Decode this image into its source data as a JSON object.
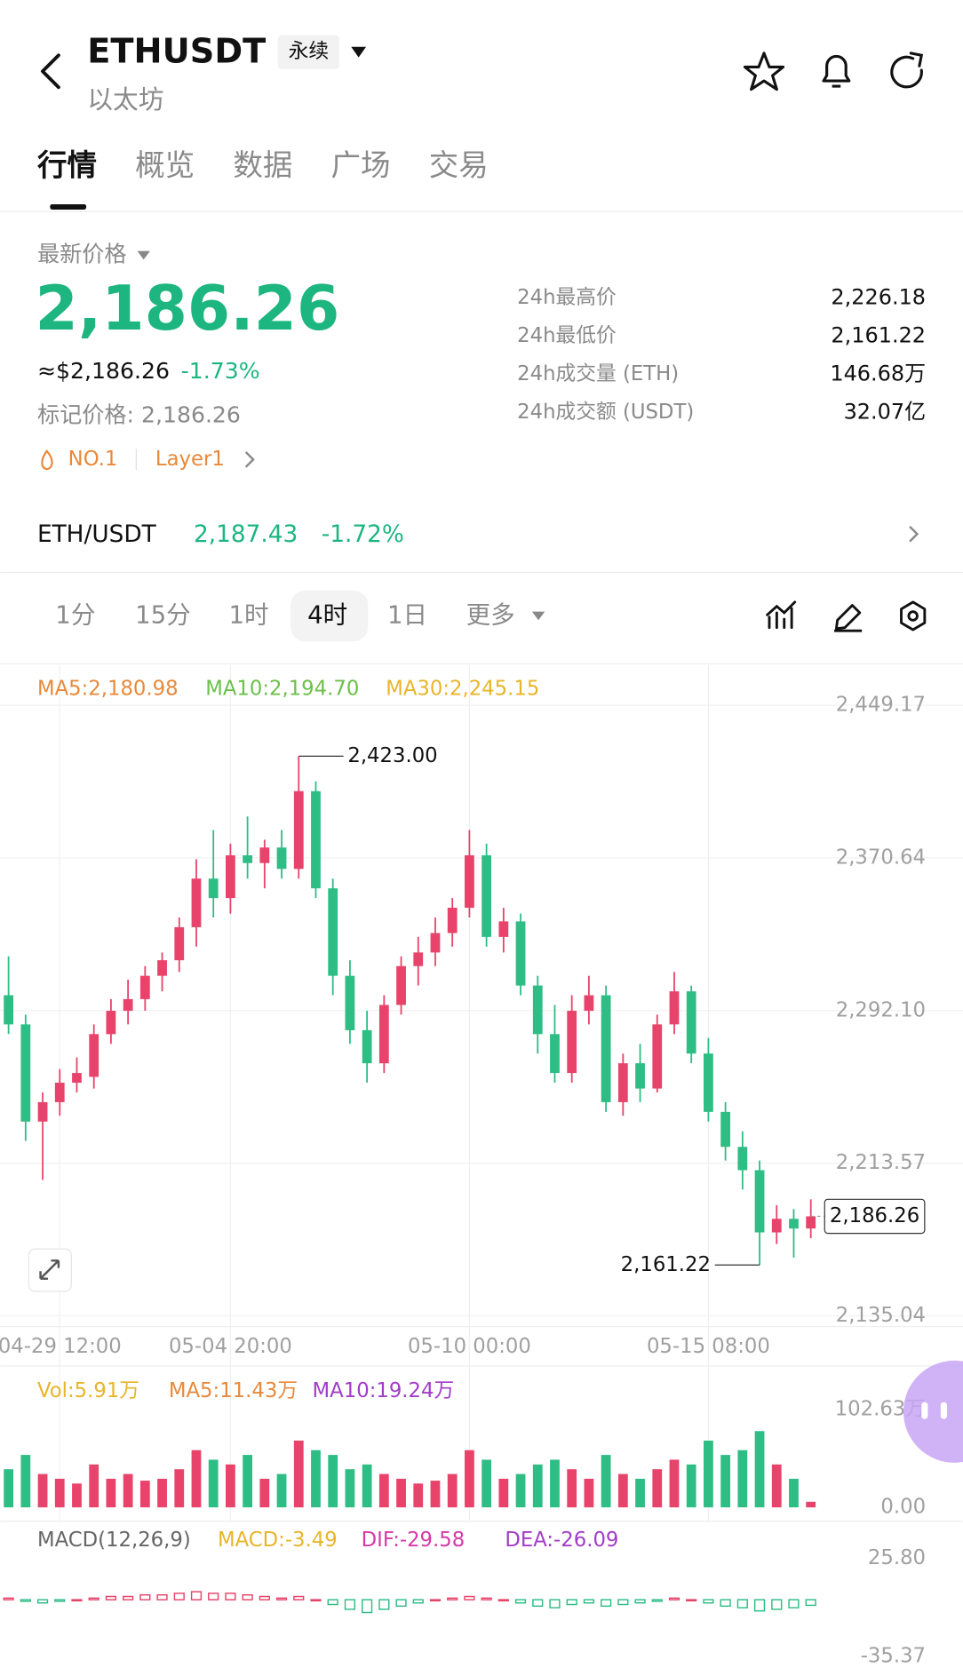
{
  "header": {
    "symbol": "ETHUSDT",
    "tag": "永续",
    "name": "以太坊"
  },
  "tabs": [
    "行情",
    "概览",
    "数据",
    "广场",
    "交易"
  ],
  "price": {
    "label": "最新价格",
    "last": "2,186.26",
    "usd": "≈$2,186.26",
    "change": "-1.73%",
    "mark": "标记价格: 2,186.26",
    "tags": [
      "NO.1",
      "Layer1"
    ]
  },
  "stats": [
    [
      "24h最高价",
      "2,226.18"
    ],
    [
      "24h最低价",
      "2,161.22"
    ],
    [
      "24h成交量 (ETH)",
      "146.68万"
    ],
    [
      "24h成交额 (USDT)",
      "32.07亿"
    ]
  ],
  "spot": {
    "pair": "ETH/USDT",
    "price": "2,187.43",
    "change": "-1.72%"
  },
  "intervals": [
    "1分",
    "15分",
    "1时",
    "4时",
    "1日",
    "更多"
  ],
  "chart_data": [
    {
      "type": "candlestick",
      "legend": [
        "MA5:2,180.98",
        "MA10:2,194.70",
        "MA30:2,245.15"
      ],
      "legend_colors": [
        "#e8893a",
        "#6cc04a",
        "#e8b52a"
      ],
      "up_color": "#e8436a",
      "down_color": "#2ebd85",
      "open": [
        2300,
        2285,
        2235,
        2245,
        2255,
        2258,
        2280,
        2292,
        2298,
        2310,
        2318,
        2335,
        2360,
        2350,
        2372,
        2368,
        2376,
        2365,
        2405,
        2355,
        2310,
        2282,
        2265,
        2295,
        2315,
        2322,
        2332,
        2345,
        2372,
        2330,
        2338,
        2305,
        2280,
        2260,
        2292,
        2300,
        2245,
        2265,
        2252,
        2285,
        2302,
        2270,
        2240,
        2222,
        2210,
        2178,
        2185,
        2180
      ],
      "high": [
        2320,
        2290,
        2250,
        2262,
        2268,
        2285,
        2298,
        2308,
        2315,
        2322,
        2340,
        2370,
        2385,
        2378,
        2392,
        2380,
        2385,
        2423,
        2410,
        2360,
        2318,
        2292,
        2300,
        2320,
        2330,
        2340,
        2350,
        2385,
        2378,
        2345,
        2342,
        2310,
        2295,
        2300,
        2310,
        2305,
        2270,
        2275,
        2290,
        2312,
        2305,
        2278,
        2245,
        2230,
        2215,
        2192,
        2190,
        2195
      ],
      "low": [
        2280,
        2225,
        2205,
        2238,
        2250,
        2252,
        2275,
        2285,
        2292,
        2302,
        2312,
        2325,
        2340,
        2342,
        2360,
        2355,
        2360,
        2360,
        2350,
        2300,
        2275,
        2255,
        2260,
        2290,
        2305,
        2315,
        2325,
        2340,
        2325,
        2322,
        2300,
        2270,
        2255,
        2255,
        2285,
        2240,
        2238,
        2245,
        2250,
        2280,
        2265,
        2235,
        2215,
        2200,
        2161.22,
        2172,
        2165,
        2175
      ],
      "close": [
        2285,
        2235,
        2245,
        2255,
        2260,
        2280,
        2292,
        2298,
        2310,
        2318,
        2335,
        2360,
        2350,
        2372,
        2368,
        2376,
        2365,
        2405,
        2355,
        2310,
        2282,
        2265,
        2295,
        2315,
        2322,
        2332,
        2345,
        2372,
        2330,
        2338,
        2305,
        2280,
        2260,
        2292,
        2300,
        2245,
        2265,
        2252,
        2285,
        2302,
        2270,
        2240,
        2222,
        2210,
        2178,
        2185,
        2180,
        2186.26
      ],
      "ylim": [
        2135.04,
        2449.17
      ],
      "yticks": [
        {
          "value": 2449.17,
          "label": "2,449.17"
        },
        {
          "value": 2370.64,
          "label": "2,370.64"
        },
        {
          "value": 2292.1,
          "label": "2,292.10"
        },
        {
          "value": 2213.57,
          "label": "2,213.57"
        },
        {
          "value": 2135.04,
          "label": "2,135.04"
        }
      ],
      "xticks": [
        {
          "value": 3,
          "label": "04-29 12:00"
        },
        {
          "value": 13,
          "label": "05-04 20:00"
        },
        {
          "value": 27,
          "label": "05-10 00:00"
        },
        {
          "value": 41,
          "label": "05-15 08:00"
        }
      ],
      "annotations": [
        {
          "value": 2423,
          "label": "2,423.00"
        },
        {
          "value": 2161.22,
          "label": "2,161.22"
        },
        {
          "value": 2186.26,
          "label": "2,186.26"
        }
      ]
    },
    {
      "type": "bar",
      "legend": [
        "Vol:5.91万",
        "MA5:11.43万",
        "MA10:19.24万"
      ],
      "legend_colors": [
        "#e8b52a",
        "#e8893a",
        "#a23cc8"
      ],
      "values": [
        40,
        55,
        35,
        30,
        25,
        45,
        30,
        35,
        28,
        30,
        40,
        60,
        50,
        45,
        55,
        30,
        35,
        70,
        60,
        55,
        40,
        45,
        35,
        30,
        25,
        28,
        35,
        60,
        50,
        30,
        35,
        45,
        50,
        40,
        30,
        55,
        35,
        30,
        40,
        50,
        45,
        70,
        55,
        60,
        80,
        45,
        30,
        5.91
      ],
      "ylim": [
        0,
        102.63
      ],
      "yticks": [
        {
          "value": 102.63,
          "label": "102.63万"
        },
        {
          "value": 0,
          "label": "0.00"
        }
      ]
    },
    {
      "type": "bar",
      "legend": [
        "MACD(12,26,9)",
        "MACD:-3.49",
        "DIF:-29.58",
        "DEA:-26.09"
      ],
      "legend_colors": [
        "#666666",
        "#e8b52a",
        "#d63aa8",
        "#a23cc8"
      ],
      "values": [
        1,
        -1,
        -2,
        -1,
        0,
        1,
        2,
        2,
        3,
        3,
        4,
        5,
        4,
        4,
        3,
        2,
        1,
        2,
        0,
        -3,
        -6,
        -8,
        -6,
        -4,
        -2,
        0,
        1,
        2,
        1,
        0,
        -2,
        -4,
        -5,
        -3,
        -2,
        -4,
        -3,
        -2,
        -1,
        1,
        0,
        -2,
        -4,
        -5,
        -7,
        -6,
        -5,
        -3.49
      ],
      "ylim": [
        -35.37,
        25.8
      ],
      "yticks": [
        {
          "value": 25.8,
          "label": "25.80"
        },
        {
          "value": -35.37,
          "label": "-35.37"
        }
      ]
    }
  ]
}
